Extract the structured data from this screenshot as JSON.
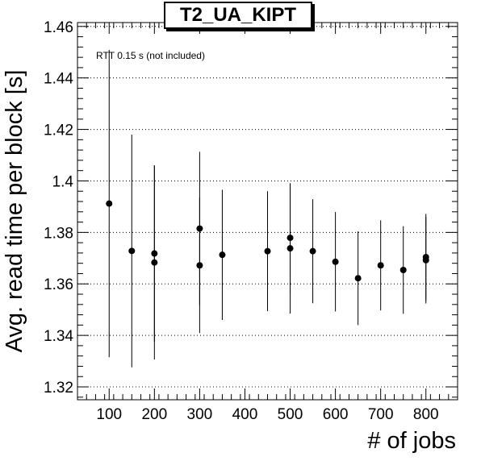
{
  "chart_data": {
    "type": "scatter",
    "title": "T2_UA_KIPT",
    "annotation": "RTT 0.15 s (not included)",
    "xlabel": "# of jobs",
    "ylabel": "Avg. read time per block [s]",
    "xlim": [
      30,
      870
    ],
    "ylim": [
      1.315,
      1.4615
    ],
    "xticks": [
      100,
      200,
      300,
      400,
      500,
      600,
      700,
      800
    ],
    "yticks": [
      1.32,
      1.34,
      1.36,
      1.38,
      1.4,
      1.42,
      1.44,
      1.46
    ],
    "ytick_labels": [
      "1.32",
      "1.34",
      "1.36",
      "1.38",
      "1.4",
      "1.42",
      "1.44",
      "1.46"
    ],
    "grid": "horizontal dotted",
    "series": [
      {
        "points": [
          {
            "x": 100,
            "y": 1.3912,
            "err": 0.0597
          },
          {
            "x": 150,
            "y": 1.3728,
            "err": 0.0452
          },
          {
            "x": 200,
            "y": 1.3718,
            "err": 0.0342
          },
          {
            "x": 200,
            "y": 1.3683,
            "err": 0.0377
          },
          {
            "x": 300,
            "y": 1.3815,
            "err": 0.0298
          },
          {
            "x": 300,
            "y": 1.3672,
            "err": 0.0263
          },
          {
            "x": 350,
            "y": 1.3713,
            "err": 0.0253
          },
          {
            "x": 450,
            "y": 1.3727,
            "err": 0.0233
          },
          {
            "x": 500,
            "y": 1.3779,
            "err": 0.0212
          },
          {
            "x": 500,
            "y": 1.3738,
            "err": 0.0253
          },
          {
            "x": 550,
            "y": 1.3727,
            "err": 0.0202
          },
          {
            "x": 600,
            "y": 1.3686,
            "err": 0.0193
          },
          {
            "x": 650,
            "y": 1.3622,
            "err": 0.0182
          },
          {
            "x": 700,
            "y": 1.3672,
            "err": 0.0175
          },
          {
            "x": 750,
            "y": 1.3654,
            "err": 0.017
          },
          {
            "x": 800,
            "y": 1.3704,
            "err": 0.0168
          },
          {
            "x": 800,
            "y": 1.3692,
            "err": 0.0168
          }
        ]
      }
    ]
  }
}
